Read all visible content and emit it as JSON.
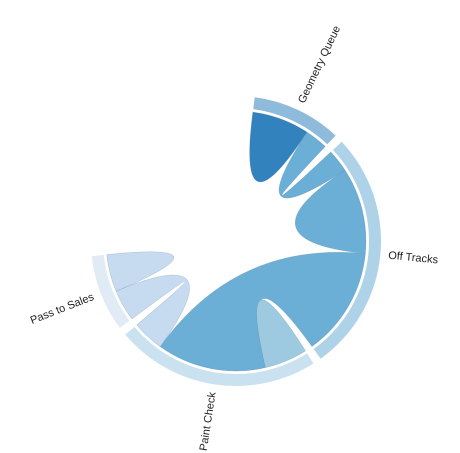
{
  "chart_data": {
    "type": "chord",
    "nodes": [
      {
        "name": "Geometry Queue",
        "color": "#3182bd"
      },
      {
        "name": "Off Tracks",
        "color": "#6baed6"
      },
      {
        "name": "Paint Check",
        "color": "#9ecae1"
      },
      {
        "name": "Pass to Sales",
        "color": "#c6dbef"
      }
    ],
    "matrix": [
      [
        20,
        0,
        0,
        0
      ],
      [
        8,
        30,
        38,
        0
      ],
      [
        0,
        0,
        15,
        0
      ],
      [
        0,
        0,
        11,
        13
      ]
    ],
    "legend": "none"
  }
}
